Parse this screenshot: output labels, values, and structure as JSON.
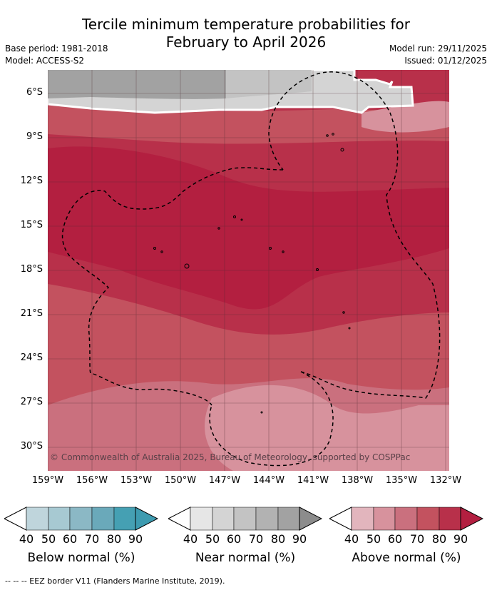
{
  "header": {
    "title_line1": "Tercile minimum temperature probabilities for",
    "title_line2": "February to April 2026",
    "base_period": "Base period: 1981-2018",
    "model": "Model: ACCESS-S2",
    "model_run": "Model run: 29/11/2025",
    "issued": "Issued: 01/12/2025"
  },
  "map": {
    "lat_ticks": [
      "6°S",
      "9°S",
      "12°S",
      "15°S",
      "18°S",
      "21°S",
      "24°S",
      "27°S",
      "30°S"
    ],
    "lon_ticks": [
      "159°W",
      "156°W",
      "153°W",
      "150°W",
      "147°W",
      "144°W",
      "141°W",
      "138°W",
      "135°W",
      "132°W"
    ],
    "credit": "© Commonwealth of Australia 2025, Bureau of Meteorology, supported by COSPPac",
    "legend_eez": "-- -- -- EEZ border V11 (Flanders Marine Institute, 2019)."
  },
  "colorbars": [
    {
      "label": "Below normal (%)",
      "ticks": [
        "40",
        "50",
        "60",
        "70",
        "80",
        "90"
      ],
      "colors": [
        "#ffffff",
        "#bfd5dc",
        "#a7c9d2",
        "#8bb8c5",
        "#6aa9ba",
        "#45a0b3"
      ]
    },
    {
      "label": "Near normal (%)",
      "ticks": [
        "40",
        "50",
        "60",
        "70",
        "80",
        "90"
      ],
      "colors": [
        "#ffffff",
        "#e6e6e6",
        "#d4d4d4",
        "#c3c3c3",
        "#b2b2b2",
        "#a2a2a2",
        "#8c8c8c"
      ]
    },
    {
      "label": "Above normal (%)",
      "ticks": [
        "40",
        "50",
        "60",
        "70",
        "80",
        "90"
      ],
      "colors": [
        "#ffffff",
        "#e2b5bd",
        "#d7929d",
        "#ca707e",
        "#c3525f",
        "#b8304a",
        "#b31f40"
      ]
    }
  ],
  "palette": {
    "above_50": "#d7929d",
    "above_60": "#ca707e",
    "above_70": "#c3525f",
    "above_80": "#b8304a",
    "above_90": "#b31f40",
    "near_50": "#d4d4d4",
    "near_70": "#c3c3c3",
    "near_80": "#a2a2a2"
  }
}
